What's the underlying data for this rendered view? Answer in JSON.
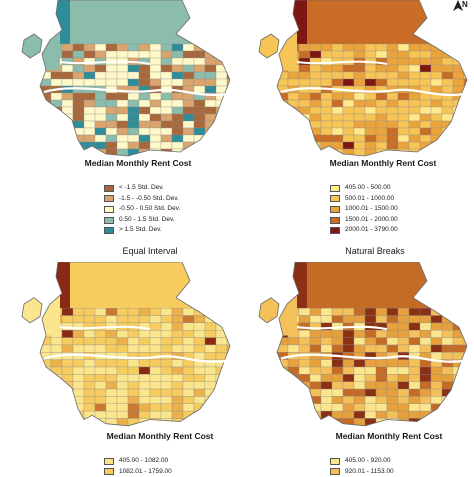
{
  "colors": {
    "water": "#ffffff",
    "outline": "#6b6b6b",
    "grid": "#8a8a8a"
  },
  "north_label": "N",
  "panels": [
    {
      "id": "std-dev",
      "title": "Median Monthly Rent Cost",
      "palette": [
        "#a9683b",
        "#d9a46e",
        "#fff8c8",
        "#8cbcab",
        "#2f8c99"
      ],
      "classes": [
        {
          "label": "< -1.5 Std. Dev.",
          "color": "#a9683b"
        },
        {
          "label": "-1.5 - -0.50 Std. Dev.",
          "color": "#d9a46e"
        },
        {
          "label": "-0.50 - 0.50 Std. Dev.",
          "color": "#fff8c8"
        },
        {
          "label": "0.50 - 1.5 Std. Dev.",
          "color": "#8cbcab"
        },
        {
          "label": "> 1.5 Std. Dev.",
          "color": "#2f8c99"
        }
      ]
    },
    {
      "id": "natural-breaks",
      "title": "Median Monthly Rent Cost",
      "palette": [
        "#ffe98a",
        "#f7c456",
        "#eba43b",
        "#c96d26",
        "#7e1712"
      ],
      "classes": [
        {
          "label": "405.00 - 500.00",
          "color": "#ffee88"
        },
        {
          "label": "500.01 - 1000.00",
          "color": "#f7c456"
        },
        {
          "label": "1000.01 - 1500.00",
          "color": "#eba43b"
        },
        {
          "label": "1500.01 - 2000.00",
          "color": "#c96d26"
        },
        {
          "label": "2000.01 - 3790.00",
          "color": "#7e1712"
        }
      ]
    },
    {
      "id": "equal-interval",
      "title": "Median Monthly Rent Cost",
      "palette": [
        "#fbe58d",
        "#f6cc5f",
        "#ebb04b",
        "#c9792e",
        "#8a2a14"
      ],
      "classes": [
        {
          "label": "405.00 - 1082.00",
          "color": "#fbe58d"
        },
        {
          "label": "1082.01 - 1759.00",
          "color": "#f6cc5f"
        }
      ]
    },
    {
      "id": "quantile",
      "title": "Median Monthly Rent Cost",
      "palette": [
        "#fbe58d",
        "#f3c05a",
        "#e6a03c",
        "#c46b26",
        "#8a3014"
      ],
      "classes": [
        {
          "label": "405.00 - 920.00",
          "color": "#fbe58d"
        },
        {
          "label": "920.01 - 1153.00",
          "color": "#f3c05a"
        }
      ]
    }
  ],
  "method_labels": {
    "equal_interval": "Equal Interval",
    "natural_breaks": "Natural Breaks"
  }
}
